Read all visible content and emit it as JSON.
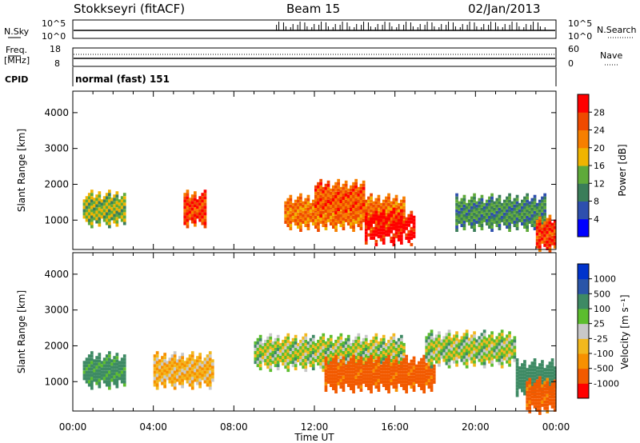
{
  "header": {
    "station": "Stokkseyri (fitACF)",
    "beam": "Beam 15",
    "date": "02/Jan/2013"
  },
  "noise_panel": {
    "left_label": "N.Sky",
    "right_label": "N.Search",
    "left_ticks": [
      "10^5",
      "10^0"
    ],
    "right_ticks": [
      "10^5",
      "10^0"
    ]
  },
  "freq_panel": {
    "left_label_line1": "Freq.",
    "left_label_line2": "[MHz]",
    "right_label": "Nave",
    "left_ticks": [
      "18",
      "8"
    ],
    "right_ticks": [
      "60",
      "0"
    ]
  },
  "cpid_panel": {
    "label": "CPID",
    "program": "normal (fast) 151"
  },
  "colors": {
    "power_scale": [
      "#0000ff",
      "#2e4fae",
      "#3a7d59",
      "#5faa3a",
      "#f0b400",
      "#f77f00",
      "#ef4a00",
      "#ff0000"
    ],
    "velocity_scale": [
      "#ff0000",
      "#f25a00",
      "#f79000",
      "#f2b81e",
      "#c8c8c8",
      "#5cbd2e",
      "#3e8a64",
      "#2a55a8",
      "#0033cc"
    ]
  },
  "chart_data": [
    {
      "type": "heatmap",
      "title": "Power",
      "xlabel": "",
      "ylabel": "Slant Range [km]",
      "x_ticks": [
        "00:00",
        "04:00",
        "08:00",
        "12:00",
        "16:00",
        "20:00",
        "00:00"
      ],
      "y_ticks": [
        "1000",
        "2000",
        "3000",
        "4000"
      ],
      "ylim": [
        180,
        4600
      ],
      "colorbar": {
        "label": "Power [dB]",
        "ticks": [
          "4",
          "8",
          "12",
          "16",
          "20",
          "24",
          "28"
        ],
        "range": [
          0,
          32
        ]
      },
      "regions": [
        {
          "start_h": 0.5,
          "end_h": 2.6,
          "range_km": 1300,
          "value_db": 14
        },
        {
          "start_h": 5.5,
          "end_h": 6.6,
          "range_km": 1300,
          "value_db": 26
        },
        {
          "start_h": 10.5,
          "end_h": 16.5,
          "range_km": 1200,
          "value_db": 22
        },
        {
          "start_h": 14.5,
          "end_h": 17.0,
          "range_km": 800,
          "value_db": 30
        },
        {
          "start_h": 12.0,
          "end_h": 14.5,
          "range_km": 1600,
          "value_db": 24
        },
        {
          "start_h": 19.0,
          "end_h": 23.5,
          "range_km": 1200,
          "value_db": 10
        },
        {
          "start_h": 23.0,
          "end_h": 24.0,
          "range_km": 600,
          "value_db": 26
        }
      ]
    },
    {
      "type": "heatmap",
      "title": "Velocity",
      "xlabel": "Time UT",
      "ylabel": "Slant Range [km]",
      "x_ticks": [
        "00:00",
        "04:00",
        "08:00",
        "12:00",
        "16:00",
        "20:00",
        "00:00"
      ],
      "y_ticks": [
        "1000",
        "2000",
        "3000",
        "4000"
      ],
      "ylim": [
        180,
        4600
      ],
      "colorbar": {
        "label": "Velocity [m s⁻¹]",
        "ticks": [
          "1000",
          "500",
          "100",
          "25",
          "-25",
          "-100",
          "-500",
          "-1000"
        ]
      },
      "regions": [
        {
          "start_h": 0.5,
          "end_h": 2.6,
          "range_km": 1300,
          "value_ms": 150
        },
        {
          "start_h": 4.0,
          "end_h": 7.0,
          "range_km": 1300,
          "value_ms": -100
        },
        {
          "start_h": 9.0,
          "end_h": 16.5,
          "range_km": 1800,
          "value_ms": 0
        },
        {
          "start_h": 12.5,
          "end_h": 18.0,
          "range_km": 1200,
          "value_ms": -600
        },
        {
          "start_h": 17.5,
          "end_h": 22.0,
          "range_km": 1900,
          "value_ms": 0
        },
        {
          "start_h": 22.0,
          "end_h": 24.0,
          "range_km": 1100,
          "value_ms": 200
        },
        {
          "start_h": 22.5,
          "end_h": 24.0,
          "range_km": 600,
          "value_ms": -600
        }
      ]
    }
  ]
}
